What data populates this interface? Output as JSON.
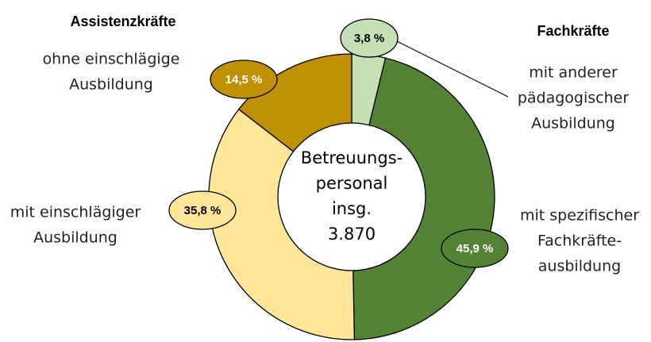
{
  "chart_data": {
    "type": "donut",
    "center_label": [
      "Betreuungs-",
      "personal",
      "insg.",
      "3.870"
    ],
    "groups": [
      "Assistenzkräfte",
      "Fachkräfte"
    ],
    "categories": [
      [
        "mit anderer",
        "pädagogischer",
        "Ausbildung"
      ],
      [
        "mit spezifischer",
        "Fachkräfte-",
        "ausbildung"
      ],
      [
        "mit einschlägiger",
        "Ausbildung"
      ],
      [
        "ohne einschlägige",
        "Ausbildung"
      ]
    ],
    "values": [
      3.8,
      45.9,
      35.8,
      14.5
    ],
    "value_labels": [
      "3,8 %",
      "45,9 %",
      "35,8 %",
      "14,5 %"
    ],
    "colors": [
      "#c5e0b4",
      "#548235",
      "#ffe699",
      "#bf9000"
    ]
  }
}
